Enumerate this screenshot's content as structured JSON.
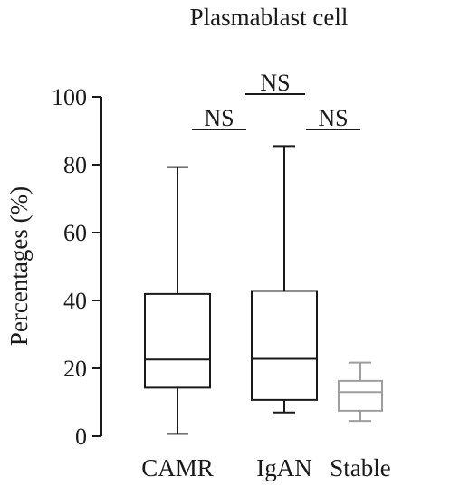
{
  "chart_data": {
    "type": "box",
    "title": "Plasmablast cell",
    "xlabel": "",
    "ylabel": "Percentages (%)",
    "ylim": [
      0,
      100
    ],
    "yticks": [
      0,
      20,
      40,
      60,
      80,
      100
    ],
    "categories": [
      "CAMR",
      "IgAN",
      "Stable"
    ],
    "boxes": [
      {
        "name": "CAMR",
        "min": 0.7,
        "q1": 14.3,
        "median": 22.6,
        "q3": 41.9,
        "max": 79.3,
        "color": "#1a1a1a"
      },
      {
        "name": "IgAN",
        "min": 7.0,
        "q1": 10.7,
        "median": 22.8,
        "q3": 42.8,
        "max": 85.5,
        "color": "#1a1a1a"
      },
      {
        "name": "Stable",
        "min": 4.5,
        "q1": 7.5,
        "median": 13.0,
        "q3": 16.3,
        "max": 21.7,
        "color": "#9e9e9e"
      }
    ],
    "significance": [
      {
        "from": "CAMR",
        "to": "IgAN",
        "label": "NS",
        "level": 91
      },
      {
        "from": "IgAN",
        "to": "Stable",
        "label": "NS",
        "level": 91
      },
      {
        "from": "CAMR",
        "to": "Stable",
        "label": "NS",
        "level": 101
      }
    ],
    "grid": false,
    "legend": "none"
  }
}
